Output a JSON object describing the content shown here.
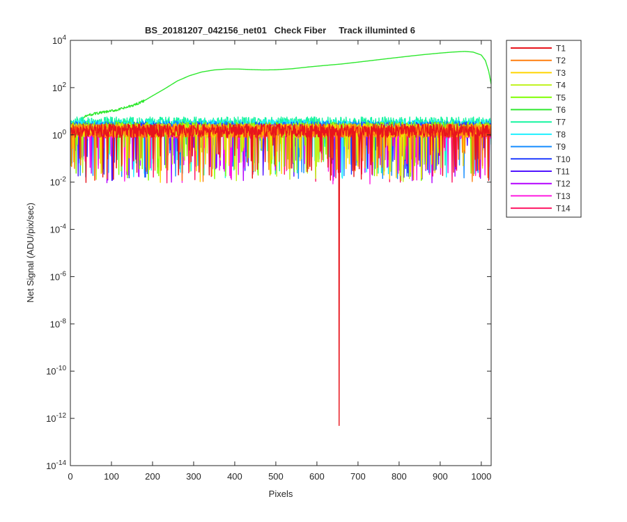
{
  "chart_data": {
    "type": "line",
    "title": "BS_20181207_042156_net01   Check Fiber     Track illuminted 6",
    "xlabel": "Pixels",
    "ylabel": "Net Signal (ADU/pix/sec)",
    "xlim": [
      0,
      1024
    ],
    "ylim_exponent": [
      -14,
      4
    ],
    "yscale": "log",
    "grid": false,
    "legend_placement": "outside-top-right",
    "x_ticks": [
      {
        "value": 0,
        "label": "0"
      },
      {
        "value": 100,
        "label": "100"
      },
      {
        "value": 200,
        "label": "200"
      },
      {
        "value": 300,
        "label": "300"
      },
      {
        "value": 400,
        "label": "400"
      },
      {
        "value": 500,
        "label": "500"
      },
      {
        "value": 600,
        "label": "600"
      },
      {
        "value": 700,
        "label": "700"
      },
      {
        "value": 800,
        "label": "800"
      },
      {
        "value": 900,
        "label": "900"
      },
      {
        "value": 1000,
        "label": "1000"
      }
    ],
    "y_ticks": [
      {
        "exp": 4,
        "base": "10",
        "sup": "4"
      },
      {
        "exp": 2,
        "base": "10",
        "sup": "2"
      },
      {
        "exp": 0,
        "base": "10",
        "sup": "0"
      },
      {
        "exp": -2,
        "base": "10",
        "sup": "-2"
      },
      {
        "exp": -4,
        "base": "10",
        "sup": "-4"
      },
      {
        "exp": -6,
        "base": "10",
        "sup": "-6"
      },
      {
        "exp": -8,
        "base": "10",
        "sup": "-8"
      },
      {
        "exp": -10,
        "base": "10",
        "sup": "-10"
      },
      {
        "exp": -12,
        "base": "10",
        "sup": "-12"
      },
      {
        "exp": -14,
        "base": "10",
        "sup": "-14"
      }
    ],
    "series": [
      {
        "name": "T1",
        "color": "#e8141c",
        "level": 1.5,
        "spike_x": 654,
        "spike_value": 5e-13
      },
      {
        "name": "T2",
        "color": "#ff7f0e",
        "level": 1.5
      },
      {
        "name": "T3",
        "color": "#ffd500",
        "level": 1.5
      },
      {
        "name": "T4",
        "color": "#bff21c",
        "level": 1.6
      },
      {
        "name": "T5",
        "color": "#7fff00",
        "level": 1.8
      },
      {
        "name": "T6",
        "color": "#2ee82e",
        "x": [
          30,
          40,
          60,
          90,
          120,
          150,
          180,
          200,
          230,
          260,
          290,
          320,
          350,
          380,
          410,
          440,
          470,
          500,
          540,
          580,
          620,
          660,
          700,
          740,
          780,
          820,
          860,
          900,
          930,
          960,
          980,
          1000,
          1010,
          1018,
          1024
        ],
        "values": [
          5,
          6.5,
          8,
          9.5,
          12,
          17,
          28,
          45,
          90,
          190,
          320,
          460,
          560,
          610,
          610,
          580,
          560,
          570,
          630,
          750,
          870,
          1000,
          1200,
          1450,
          1750,
          2100,
          2500,
          2900,
          3200,
          3400,
          3200,
          2400,
          1400,
          500,
          140
        ]
      },
      {
        "name": "T7",
        "color": "#14f5a0",
        "level": 3.0
      },
      {
        "name": "T8",
        "color": "#1ff0ff",
        "level": 2.3
      },
      {
        "name": "T9",
        "color": "#148cff",
        "level": 2.0
      },
      {
        "name": "T10",
        "color": "#1f3cff",
        "level": 1.8
      },
      {
        "name": "T11",
        "color": "#5014ff",
        "level": 1.6
      },
      {
        "name": "T12",
        "color": "#b400ff",
        "level": 1.4
      },
      {
        "name": "T13",
        "color": "#ff1ae0",
        "level": 1.3
      },
      {
        "name": "T14",
        "color": "#ff1463",
        "level": 1.4
      }
    ]
  }
}
